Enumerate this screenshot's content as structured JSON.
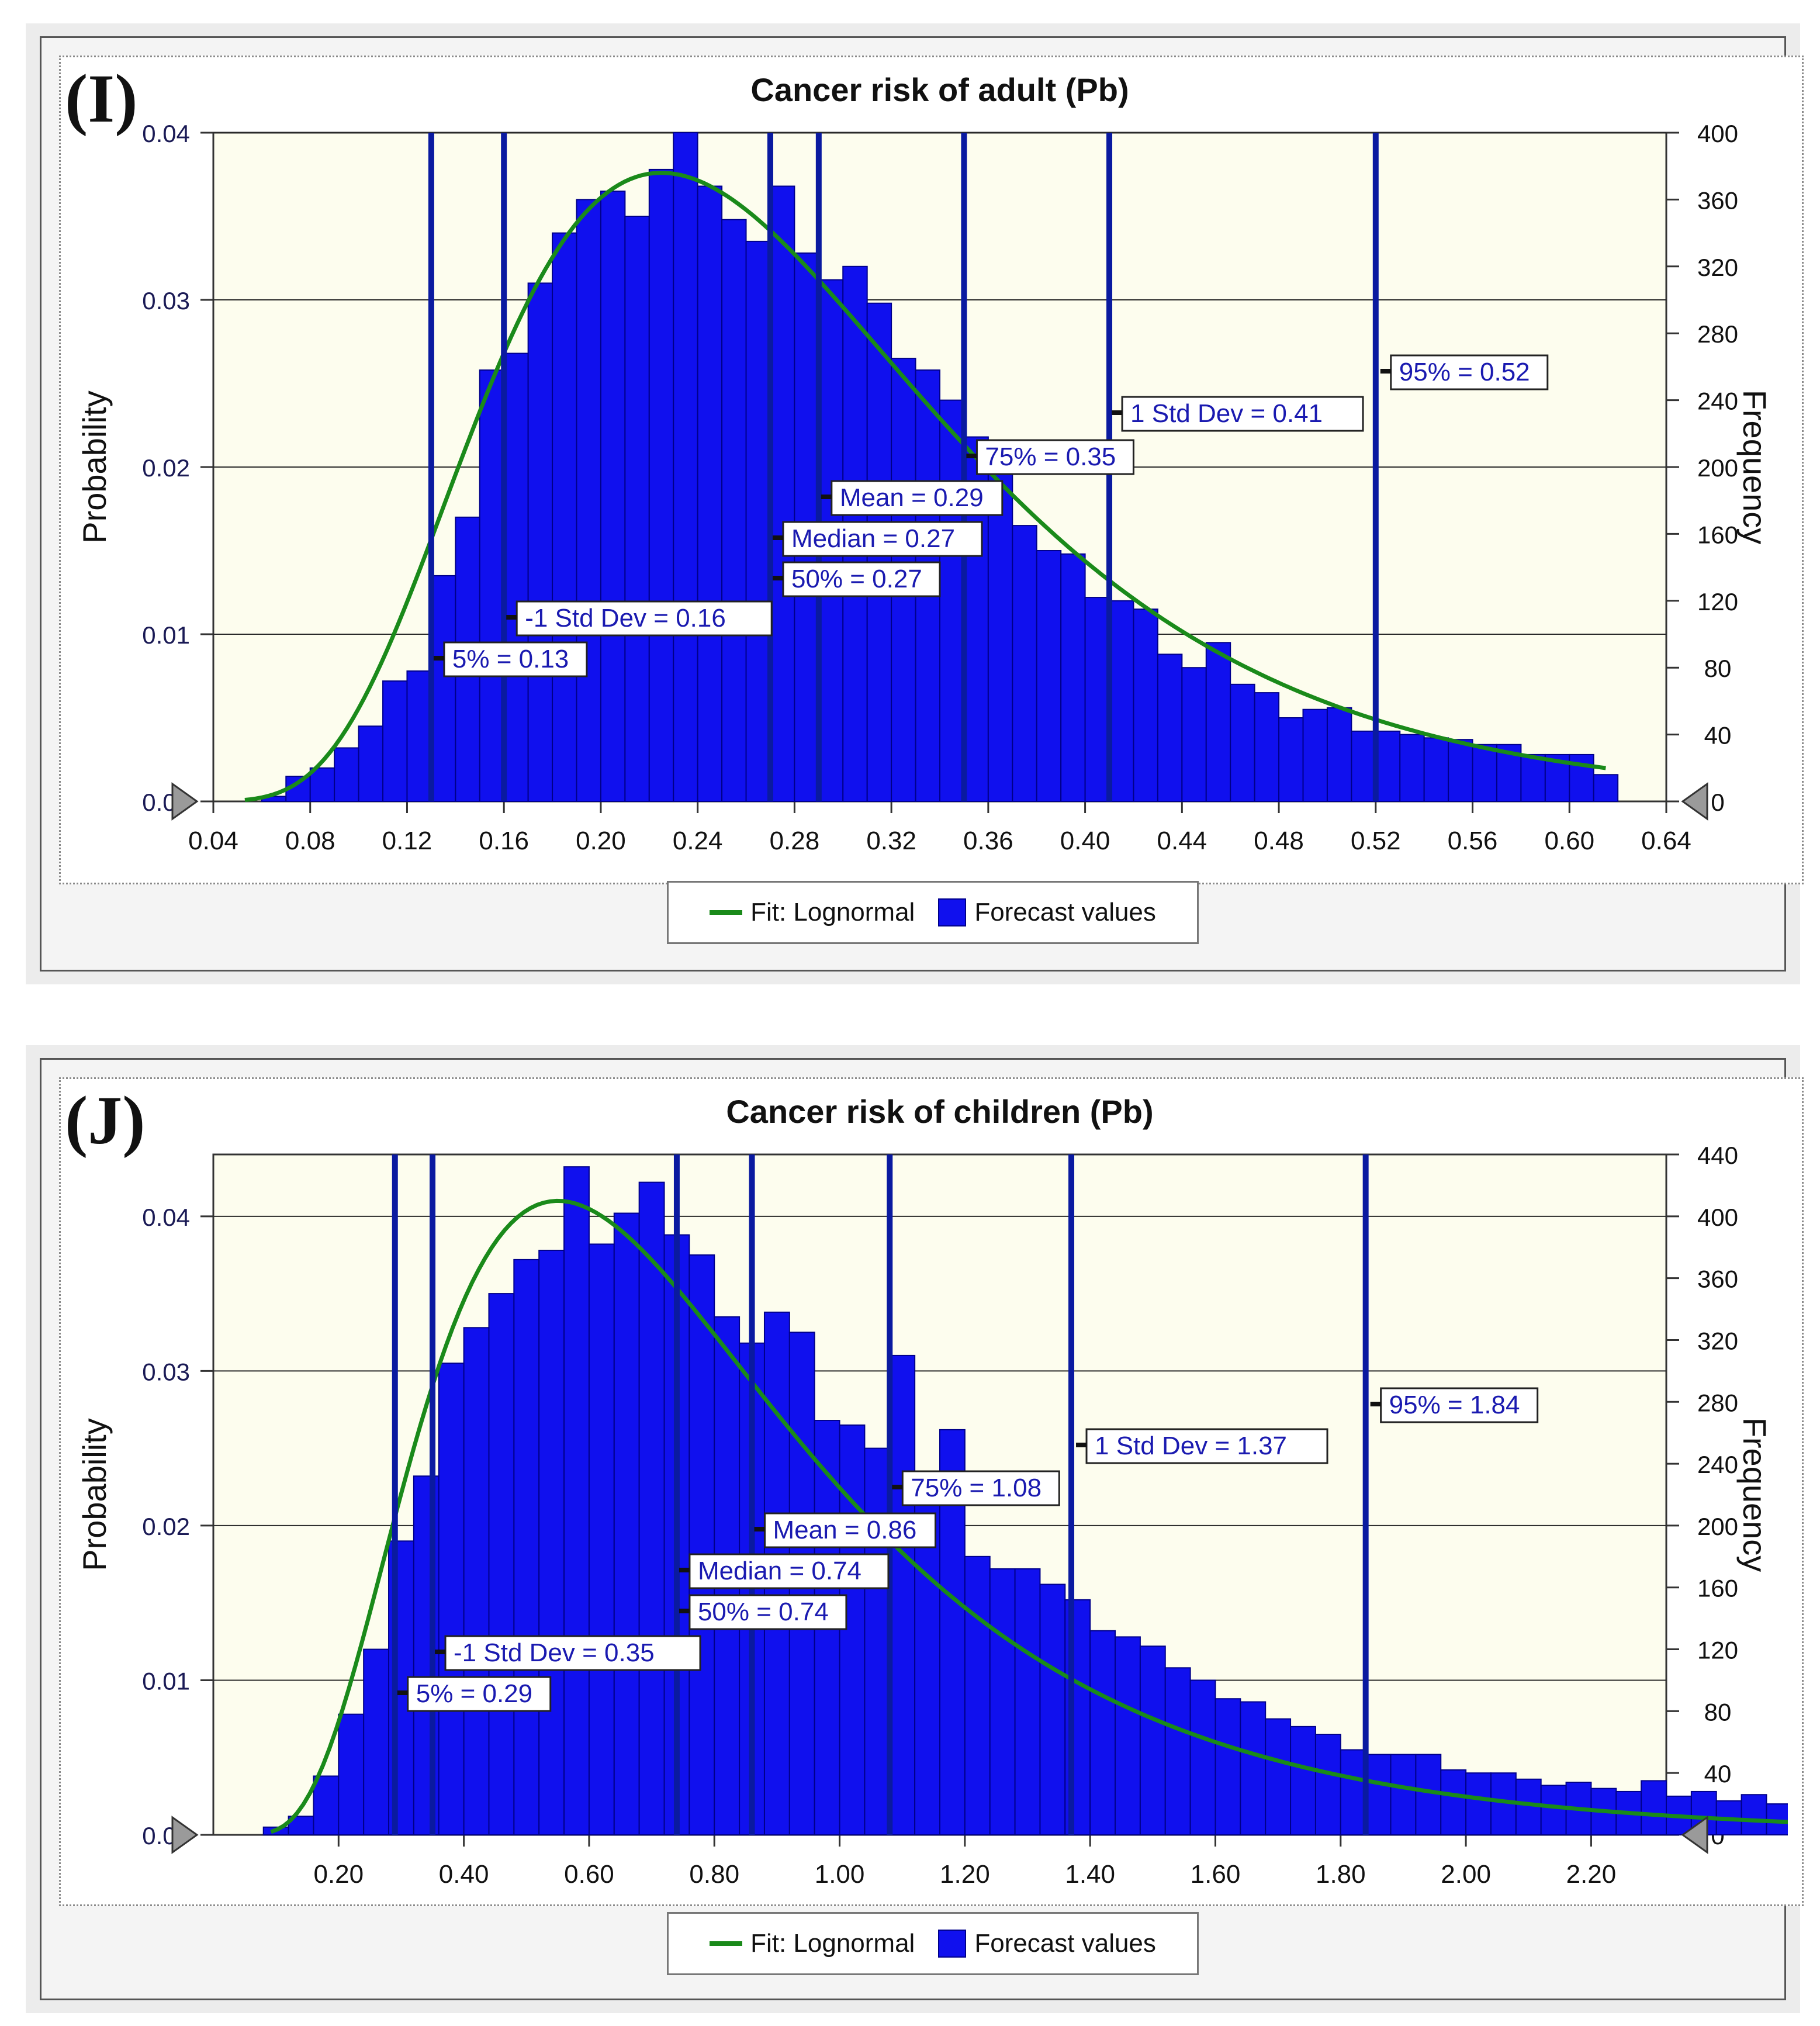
{
  "chart_data": [
    {
      "panel_label": "(I)",
      "type": "bar",
      "title": "Cancer risk of adult (Pb)",
      "ylabel_left": "Probability",
      "ylabel_right": "Frequency",
      "x_ticks": [
        "0.04",
        "0.08",
        "0.12",
        "0.16",
        "0.20",
        "0.24",
        "0.28",
        "0.32",
        "0.36",
        "0.40",
        "0.44",
        "0.48",
        "0.52",
        "0.56",
        "0.60",
        "0.64"
      ],
      "xlim": [
        0.04,
        0.64
      ],
      "y_left_ticks": [
        "0.00",
        "0.01",
        "0.02",
        "0.03",
        "0.04"
      ],
      "y_left_lim": [
        0,
        0.04
      ],
      "y_right_ticks": [
        "0",
        "40",
        "80",
        "120",
        "160",
        "200",
        "240",
        "280",
        "320",
        "360",
        "400"
      ],
      "y_right_lim": [
        0,
        400
      ],
      "bin_start": 0.05,
      "bin_width": 0.01,
      "frequencies": [
        0,
        3,
        15,
        20,
        32,
        45,
        72,
        78,
        135,
        170,
        258,
        268,
        310,
        340,
        360,
        365,
        350,
        378,
        400,
        368,
        348,
        335,
        368,
        328,
        312,
        320,
        298,
        265,
        258,
        240,
        218,
        200,
        165,
        150,
        148,
        122,
        120,
        115,
        88,
        80,
        95,
        70,
        65,
        50,
        55,
        56,
        42,
        42,
        40,
        38,
        37,
        34,
        34,
        28,
        28,
        28,
        16
      ],
      "fit_name": "Lognormal",
      "fit": {
        "mu_ln": -1.3195,
        "sigma_ln": 0.4148,
        "peak": 0.0376
      },
      "markers": [
        {
          "x": 0.13,
          "label": "5% = 0.13"
        },
        {
          "x": 0.16,
          "label": "-1 Std Dev = 0.16"
        },
        {
          "x": 0.27,
          "label": "50% = 0.27"
        },
        {
          "x": 0.27,
          "label": "Median = 0.27"
        },
        {
          "x": 0.29,
          "label": "Mean = 0.29"
        },
        {
          "x": 0.35,
          "label": "75% = 0.35"
        },
        {
          "x": 0.41,
          "label": "1 Std Dev = 0.41"
        },
        {
          "x": 0.52,
          "label": "95% = 0.52"
        }
      ],
      "legend": [
        "Fit: Lognormal",
        "Forecast values"
      ]
    },
    {
      "panel_label": "(J)",
      "type": "bar",
      "title": "Cancer risk of children (Pb)",
      "ylabel_left": "Probability",
      "ylabel_right": "Frequency",
      "x_ticks": [
        "0.20",
        "0.40",
        "0.60",
        "0.80",
        "1.00",
        "1.20",
        "1.40",
        "1.60",
        "1.80",
        "2.00",
        "2.20"
      ],
      "xlim": [
        0.0,
        2.32
      ],
      "y_left_ticks": [
        "0.00",
        "0.01",
        "0.02",
        "0.03",
        "0.04"
      ],
      "y_left_lim": [
        0,
        0.044
      ],
      "y_right_ticks": [
        "0",
        "40",
        "80",
        "120",
        "160",
        "200",
        "240",
        "280",
        "320",
        "360",
        "400",
        "440"
      ],
      "y_right_lim": [
        0,
        440
      ],
      "bin_start": 0.08,
      "bin_width": 0.04,
      "frequencies": [
        5,
        12,
        38,
        78,
        120,
        190,
        232,
        305,
        328,
        350,
        372,
        378,
        432,
        382,
        402,
        422,
        388,
        375,
        335,
        318,
        338,
        325,
        268,
        265,
        250,
        310,
        232,
        262,
        180,
        172,
        172,
        162,
        152,
        132,
        128,
        122,
        108,
        100,
        88,
        86,
        75,
        70,
        65,
        55,
        52,
        52,
        52,
        42,
        40,
        40,
        36,
        32,
        34,
        30,
        28,
        35,
        25,
        28,
        22,
        26,
        20,
        15,
        10
      ],
      "fit_name": "Lognormal",
      "fit": {
        "mu_ln": -0.3011,
        "sigma_ln": 0.5447,
        "peak": 0.041
      },
      "markers": [
        {
          "x": 0.29,
          "label": "5% = 0.29"
        },
        {
          "x": 0.35,
          "label": "-1 Std Dev = 0.35"
        },
        {
          "x": 0.74,
          "label": "50% = 0.74"
        },
        {
          "x": 0.74,
          "label": "Median = 0.74"
        },
        {
          "x": 0.86,
          "label": "Mean = 0.86"
        },
        {
          "x": 1.08,
          "label": "75% = 1.08"
        },
        {
          "x": 1.37,
          "label": "1 Std Dev = 1.37"
        },
        {
          "x": 1.84,
          "label": "95% = 1.84"
        }
      ],
      "legend": [
        "Fit: Lognormal",
        "Forecast values"
      ]
    }
  ],
  "colors": {
    "bar_fill": "#1010ee",
    "bar_stroke": "#00008a",
    "fit_line": "#1a8a1a",
    "marker_line": "#0a1aa0",
    "plot_background": "#fdfdee",
    "gridline": "#2a2a2a"
  }
}
